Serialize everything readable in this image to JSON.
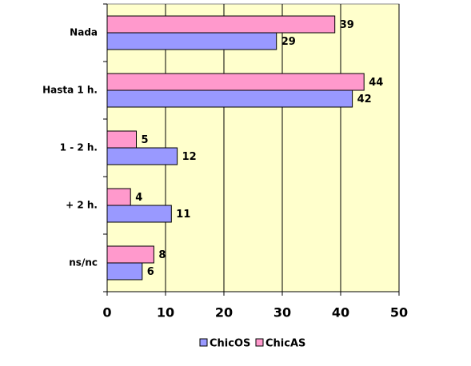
{
  "chart_data": {
    "type": "bar",
    "orientation": "horizontal",
    "categories": [
      "Nada",
      "Hasta 1 h.",
      "1 - 2 h.",
      "+ 2 h.",
      "ns/nc"
    ],
    "series": [
      {
        "name": "ChicOS",
        "color": "#9999ff",
        "values": [
          29,
          42,
          12,
          11,
          6
        ]
      },
      {
        "name": "ChicAS",
        "color": "#ff99cc",
        "values": [
          39,
          44,
          5,
          4,
          8
        ]
      }
    ],
    "xlim": [
      0,
      50
    ],
    "xticks": [
      0,
      10,
      20,
      30,
      40,
      50
    ],
    "grid": true,
    "plot_background": "#ffffcc",
    "legend": "bottom"
  }
}
